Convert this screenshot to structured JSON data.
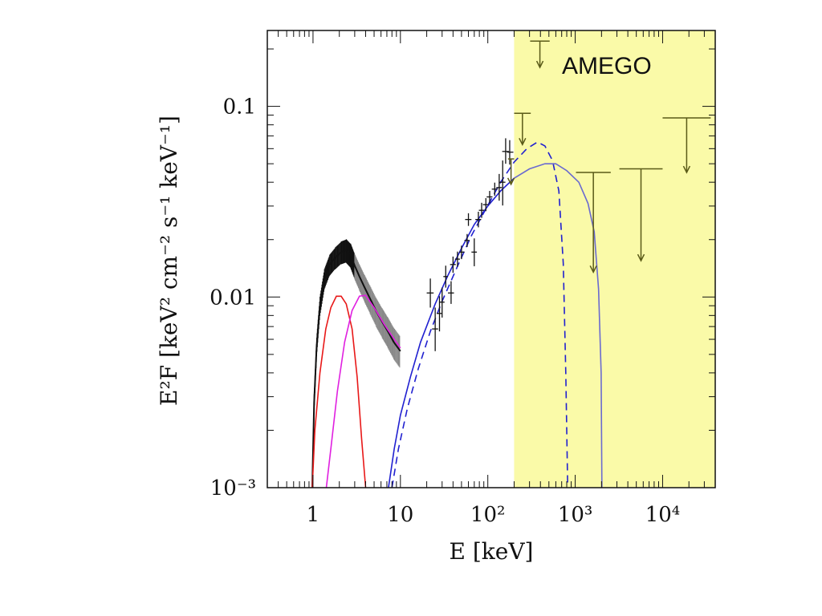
{
  "chart_data": {
    "type": "line",
    "title": "",
    "xlabel": "E [keV]",
    "ylabel": "E²F [keV² cm⁻² s⁻¹ keV⁻¹]",
    "xscale": "log",
    "yscale": "log",
    "xlim": [
      0.3,
      40000
    ],
    "ylim": [
      0.001,
      0.25
    ],
    "grid": false,
    "x_ticks": [
      {
        "value": 1,
        "label": "1"
      },
      {
        "value": 10,
        "label": "10"
      },
      {
        "value": 100,
        "label": "10²"
      },
      {
        "value": 1000,
        "label": "10³"
      },
      {
        "value": 10000,
        "label": "10⁴"
      }
    ],
    "y_ticks": [
      {
        "value": 0.001,
        "label": "10⁻³"
      },
      {
        "value": 0.01,
        "label": "0.01"
      },
      {
        "value": 0.1,
        "label": "0.1"
      }
    ],
    "shaded_region": {
      "label": "AMEGO",
      "x_from": 200,
      "x_to": 40000,
      "color": "#fafaa8"
    },
    "series": [
      {
        "kind": "model",
        "color": "#e81818",
        "style": "solid",
        "points": [
          [
            0.98,
            0.001
          ],
          [
            1.05,
            0.002
          ],
          [
            1.2,
            0.004
          ],
          [
            1.4,
            0.0068
          ],
          [
            1.6,
            0.0088
          ],
          [
            1.85,
            0.0101
          ],
          [
            2.1,
            0.0101
          ],
          [
            2.4,
            0.0092
          ],
          [
            2.8,
            0.0068
          ],
          [
            3.2,
            0.0038
          ],
          [
            3.6,
            0.0018
          ],
          [
            4.0,
            0.001
          ]
        ]
      },
      {
        "kind": "model",
        "color": "#e020e0",
        "style": "solid",
        "points": [
          [
            1.42,
            0.001
          ],
          [
            1.6,
            0.0016
          ],
          [
            1.9,
            0.0032
          ],
          [
            2.3,
            0.0058
          ],
          [
            2.8,
            0.0085
          ],
          [
            3.4,
            0.0101
          ],
          [
            4.0,
            0.0102
          ],
          [
            5.0,
            0.0088
          ],
          [
            6.5,
            0.0072
          ],
          [
            8.5,
            0.006
          ],
          [
            10.0,
            0.0054
          ]
        ]
      },
      {
        "kind": "model",
        "color": "#2020d0",
        "style": "solid",
        "points": [
          [
            7.3,
            0.001
          ],
          [
            8.5,
            0.0016
          ],
          [
            10,
            0.0024
          ],
          [
            13,
            0.0038
          ],
          [
            17,
            0.0058
          ],
          [
            25,
            0.0092
          ],
          [
            35,
            0.013
          ],
          [
            50,
            0.018
          ],
          [
            70,
            0.024
          ],
          [
            100,
            0.03
          ],
          [
            140,
            0.036
          ],
          [
            200,
            0.042
          ]
        ]
      },
      {
        "kind": "model",
        "color": "#2020d0",
        "style": "dashed",
        "points": [
          [
            8,
            0.001
          ],
          [
            9.5,
            0.0016
          ],
          [
            12,
            0.0026
          ],
          [
            16,
            0.0042
          ],
          [
            22,
            0.0066
          ],
          [
            30,
            0.0095
          ],
          [
            45,
            0.0145
          ],
          [
            65,
            0.021
          ],
          [
            95,
            0.029
          ],
          [
            140,
            0.04
          ],
          [
            200,
            0.051
          ],
          [
            280,
            0.06
          ],
          [
            370,
            0.065
          ],
          [
            450,
            0.062
          ],
          [
            550,
            0.052
          ],
          [
            650,
            0.036
          ],
          [
            730,
            0.015
          ],
          [
            780,
            0.004
          ],
          [
            820,
            0.001
          ]
        ]
      },
      {
        "kind": "model",
        "color": "#6a6ad0",
        "style": "solid",
        "points": [
          [
            200,
            0.042
          ],
          [
            300,
            0.047
          ],
          [
            450,
            0.05
          ],
          [
            600,
            0.05
          ],
          [
            800,
            0.046
          ],
          [
            1100,
            0.04
          ],
          [
            1400,
            0.031
          ],
          [
            1650,
            0.022
          ],
          [
            1850,
            0.011
          ],
          [
            1980,
            0.004
          ],
          [
            2020,
            0.001
          ]
        ]
      },
      {
        "kind": "soft_data",
        "color": "#111111",
        "points": [
          [
            0.98,
            0.001
          ],
          [
            1.03,
            0.0028
          ],
          [
            1.1,
            0.0055
          ],
          [
            1.2,
            0.009
          ],
          [
            1.35,
            0.0125
          ],
          [
            1.55,
            0.0148
          ],
          [
            1.8,
            0.0161
          ],
          [
            2.1,
            0.0172
          ],
          [
            2.4,
            0.0176
          ],
          [
            2.7,
            0.0166
          ],
          [
            3.0,
            0.0146
          ],
          [
            3.4,
            0.0128
          ],
          [
            3.9,
            0.0112
          ],
          [
            4.5,
            0.0098
          ],
          [
            5.3,
            0.0084
          ],
          [
            6.2,
            0.0074
          ],
          [
            7.2,
            0.0066
          ],
          [
            8.4,
            0.0058
          ],
          [
            10.0,
            0.0052
          ]
        ]
      },
      {
        "kind": "hard_data",
        "color": "#111111",
        "points": [
          {
            "x": 22,
            "xerr": [
              20,
              24
            ],
            "y": 0.0105,
            "yerr": [
              0.0088,
              0.0125
            ]
          },
          {
            "x": 25,
            "xerr": [
              23,
              27
            ],
            "y": 0.0068,
            "yerr": [
              0.0052,
              0.0088
            ]
          },
          {
            "x": 28,
            "xerr": [
              26,
              30
            ],
            "y": 0.0082,
            "yerr": [
              0.0066,
              0.0101
            ]
          },
          {
            "x": 30,
            "xerr": [
              28,
              32
            ],
            "y": 0.0094,
            "yerr": [
              0.0078,
              0.0112
            ]
          },
          {
            "x": 33,
            "xerr": [
              31,
              35
            ],
            "y": 0.0128,
            "yerr": [
              0.0112,
              0.0146
            ]
          },
          {
            "x": 38,
            "xerr": [
              35,
              41
            ],
            "y": 0.0105,
            "yerr": [
              0.0092,
              0.0121
            ]
          },
          {
            "x": 40,
            "xerr": [
              37,
              43
            ],
            "y": 0.0148,
            "yerr": [
              0.0134,
              0.0163
            ]
          },
          {
            "x": 45,
            "xerr": [
              42,
              48
            ],
            "y": 0.0158,
            "yerr": [
              0.0144,
              0.0173
            ]
          },
          {
            "x": 50,
            "xerr": [
              47,
              54
            ],
            "y": 0.0172,
            "yerr": [
              0.0158,
              0.0186
            ]
          },
          {
            "x": 58,
            "xerr": [
              54,
              62
            ],
            "y": 0.0198,
            "yerr": [
              0.0183,
              0.0214
            ]
          },
          {
            "x": 60,
            "xerr": [
              55,
              65
            ],
            "y": 0.0255,
            "yerr": [
              0.0236,
              0.0275
            ]
          },
          {
            "x": 70,
            "xerr": [
              65,
              75
            ],
            "y": 0.0172,
            "yerr": [
              0.0145,
              0.0203
            ]
          },
          {
            "x": 78,
            "xerr": [
              72,
              84
            ],
            "y": 0.0255,
            "yerr": [
              0.0232,
              0.028
            ]
          },
          {
            "x": 85,
            "xerr": [
              79,
              91
            ],
            "y": 0.0285,
            "yerr": [
              0.026,
              0.0312
            ]
          },
          {
            "x": 95,
            "xerr": [
              88,
              102
            ],
            "y": 0.0305,
            "yerr": [
              0.0282,
              0.033
            ]
          },
          {
            "x": 105,
            "xerr": [
              97,
              113
            ],
            "y": 0.0335,
            "yerr": [
              0.031,
              0.036
            ]
          },
          {
            "x": 120,
            "xerr": [
              111,
              129
            ],
            "y": 0.0368,
            "yerr": [
              0.034,
              0.0398
            ]
          },
          {
            "x": 135,
            "xerr": [
              125,
              145
            ],
            "y": 0.0375,
            "yerr": [
              0.032,
              0.0442
            ]
          },
          {
            "x": 148,
            "xerr": [
              137,
              159
            ],
            "y": 0.04,
            "yerr": [
              0.0302,
              0.052
            ]
          },
          {
            "x": 160,
            "xerr": [
              146,
              174
            ],
            "y": 0.058,
            "yerr": [
              0.05,
              0.068
            ]
          },
          {
            "x": 178,
            "xerr": [
              166,
              196
            ],
            "y": 0.0575,
            "yerr": [
              0.0495,
              0.0665
            ]
          }
        ]
      },
      {
        "kind": "upper_limits",
        "color": "#5a5a18",
        "points": [
          {
            "x_from": 170,
            "x_to": 200,
            "y": 0.053,
            "arrow_to": 0.039
          },
          {
            "x_from": 200,
            "x_to": 310,
            "y": 0.092,
            "arrow_to": 0.063
          },
          {
            "x_from": 305,
            "x_to": 510,
            "y": 0.22,
            "arrow_to": 0.16
          },
          {
            "x_from": 1020,
            "x_to": 2550,
            "y": 0.045,
            "arrow_to": 0.0135
          },
          {
            "x_from": 3200,
            "x_to": 10000,
            "y": 0.047,
            "arrow_to": 0.0155
          },
          {
            "x_from": 10000,
            "x_to": 35500,
            "y": 0.087,
            "arrow_to": 0.045
          }
        ]
      }
    ]
  }
}
